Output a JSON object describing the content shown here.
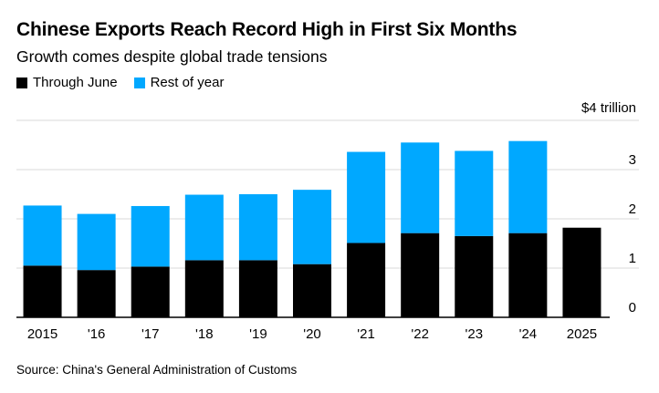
{
  "chart_data": {
    "type": "bar",
    "stacked": true,
    "title": "Chinese Exports Reach Record High in First Six Months",
    "subtitle": "Growth comes despite global trade tensions",
    "categories": [
      "2015",
      "'16",
      "'17",
      "'18",
      "'19",
      "'20",
      "'21",
      "'22",
      "'23",
      "'24",
      "2025"
    ],
    "series": [
      {
        "name": "Through June",
        "color": "#000000",
        "values": [
          1.05,
          0.96,
          1.03,
          1.16,
          1.16,
          1.08,
          1.51,
          1.71,
          1.65,
          1.71,
          1.82
        ]
      },
      {
        "name": "Rest of year",
        "color": "#00a8ff",
        "values": [
          1.22,
          1.14,
          1.23,
          1.33,
          1.34,
          1.51,
          1.85,
          1.84,
          1.73,
          1.87,
          0
        ]
      }
    ],
    "y_ticks": [
      {
        "value": 0,
        "label": "0"
      },
      {
        "value": 1,
        "label": "1"
      },
      {
        "value": 2,
        "label": "2"
      },
      {
        "value": 3,
        "label": "3"
      },
      {
        "value": 4,
        "label": "$4 trillion"
      }
    ],
    "ylim": [
      0,
      4
    ],
    "xlabel": "",
    "ylabel": "",
    "source": "Source: China's General Administration of Customs"
  }
}
